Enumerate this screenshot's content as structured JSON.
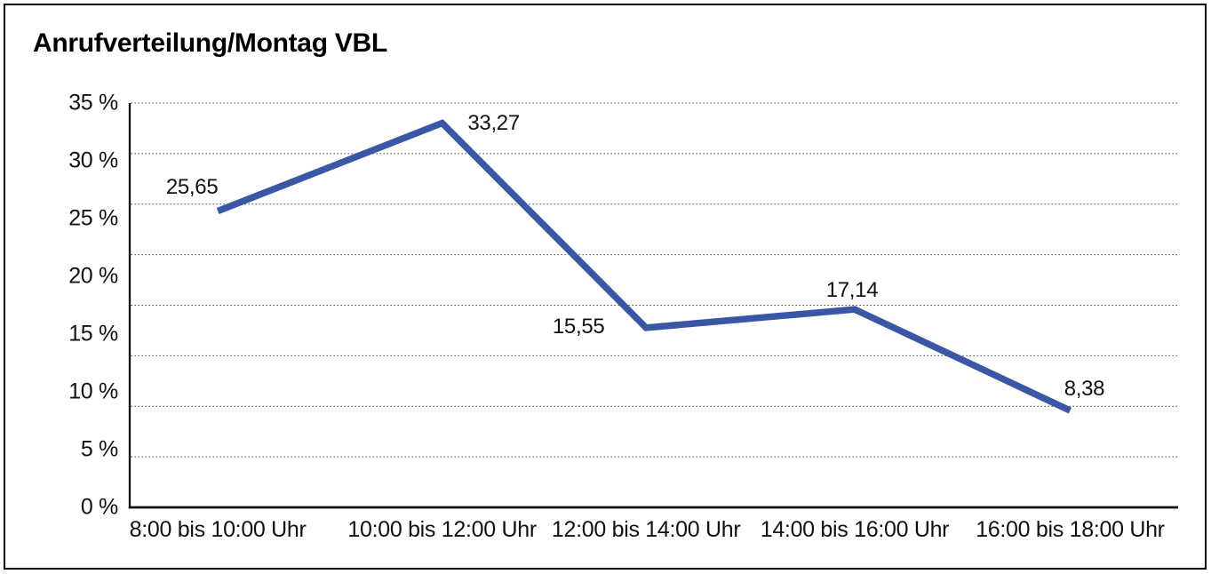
{
  "chart_data": {
    "type": "line",
    "title": "Anrufverteilung/Montag VBL",
    "categories": [
      "8:00 bis 10:00 Uhr",
      "10:00 bis 12:00 Uhr",
      "12:00 bis 14:00 Uhr",
      "14:00 bis 16:00 Uhr",
      "16:00 bis 18:00 Uhr"
    ],
    "values": [
      25.65,
      33.27,
      15.55,
      17.14,
      8.38
    ],
    "value_labels": [
      "25,65",
      "33,27",
      "15,55",
      "17,14",
      "8,38"
    ],
    "y_ticks": [
      "35 %",
      "30 %",
      "25 %",
      "20 %",
      "15 %",
      "10 %",
      "5 %",
      "0 %"
    ],
    "y_axis": {
      "min": 0,
      "max": 35,
      "unit": "%",
      "tick_step": 5
    },
    "x_axis": {
      "label": ""
    },
    "grid": {
      "horizontal_divisions": 8,
      "style": "dotted",
      "color": "#333333"
    },
    "line_color": "#3A57A5",
    "axis_color": "#111111",
    "legend": "none"
  }
}
